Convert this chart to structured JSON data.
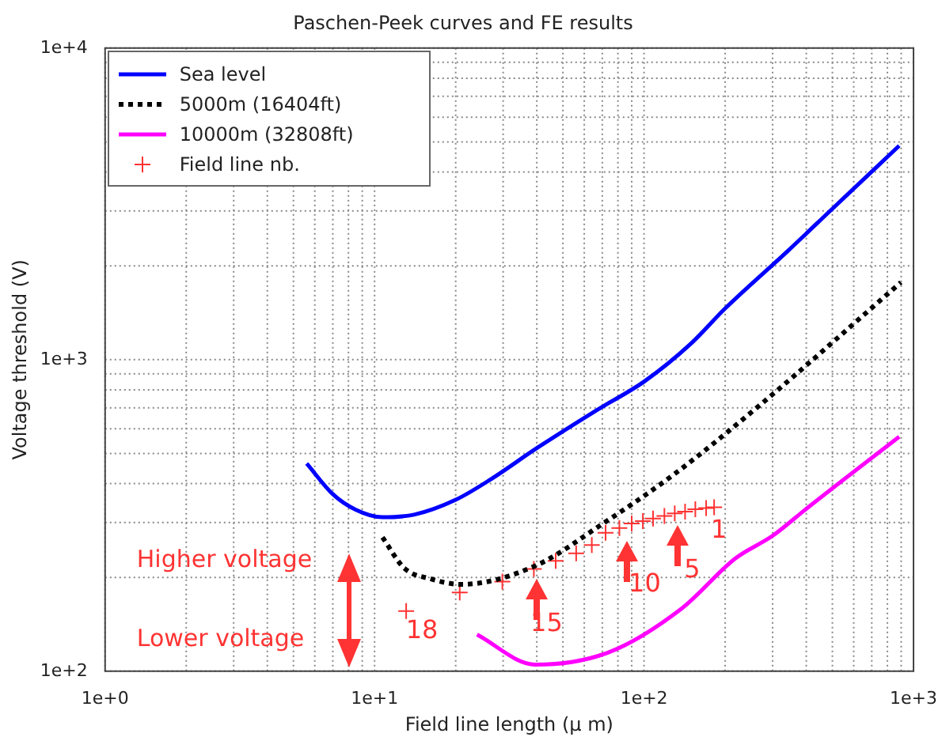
{
  "chart_data": {
    "type": "line",
    "title": "Paschen-Peek curves and FE results",
    "xlabel": "Field line length (μ m)",
    "ylabel": "Voltage threshold (V)",
    "log": "xy",
    "grid": true,
    "legend": "top left",
    "xlim": [
      1,
      1000
    ],
    "ylim": [
      100,
      10000
    ],
    "xticks": [
      {
        "value": 1,
        "label": "1e+0"
      },
      {
        "value": 10,
        "label": "1e+1"
      },
      {
        "value": 100,
        "label": "1e+2"
      },
      {
        "value": 1000,
        "label": "1e+3"
      }
    ],
    "yticks": [
      {
        "value": 100,
        "label": "1e+2"
      },
      {
        "value": 1000,
        "label": "1e+3"
      },
      {
        "value": 10000,
        "label": "1e+4"
      }
    ],
    "series": [
      {
        "name": "Sea level",
        "color": "#0000ff",
        "line_style": "solid",
        "marker": "none",
        "x": [
          5.6,
          7,
          8.5,
          10.7,
          14,
          20,
          27,
          40,
          67,
          100,
          150,
          200,
          341,
          500,
          885
        ],
        "values": [
          464,
          370,
          330,
          312,
          318,
          355,
          413,
          520,
          690,
          850,
          1130,
          1460,
          2230,
          3050,
          4860
        ]
      },
      {
        "name": "5000m (16404ft)",
        "color": "#000000",
        "line_style": "dotted",
        "marker": "none",
        "x": [
          10.7,
          12.9,
          16.1,
          21,
          39.5,
          70.5,
          129,
          260,
          898
        ],
        "values": [
          269,
          214,
          198,
          190,
          218,
          298,
          428,
          697,
          1770
        ]
      },
      {
        "name": "10000m (32808ft)",
        "color": "#ff00ff",
        "line_style": "solid",
        "marker": "none",
        "x": [
          24,
          39.5,
          74,
          138,
          218,
          300,
          405,
          885
        ],
        "values": [
          131,
          105,
          115,
          159,
          230,
          272,
          335,
          566
        ]
      },
      {
        "name": "Field line nb.",
        "type": "scatter",
        "color": "#ff3333",
        "marker": "cross",
        "x": [
          13.1,
          20.7,
          29.8,
          39,
          47,
          56,
          64,
          72,
          81,
          90,
          99,
          108,
          119,
          130,
          142,
          155,
          170,
          182
        ],
        "values": [
          156,
          179,
          194,
          213,
          226,
          239,
          254,
          278,
          288,
          298,
          303,
          309,
          315,
          321,
          325,
          331,
          334,
          336
        ]
      }
    ],
    "annotations": [
      "Higher voltage",
      "Lower voltage",
      {
        "text": "18",
        "x": 13.1,
        "y": 156
      },
      {
        "text": "15",
        "x": 39,
        "y": 213
      },
      {
        "text": "10",
        "x": 81,
        "y": 288
      },
      {
        "text": "5",
        "x": 130,
        "y": 321
      },
      {
        "text": "1",
        "x": 182,
        "y": 336
      }
    ]
  }
}
